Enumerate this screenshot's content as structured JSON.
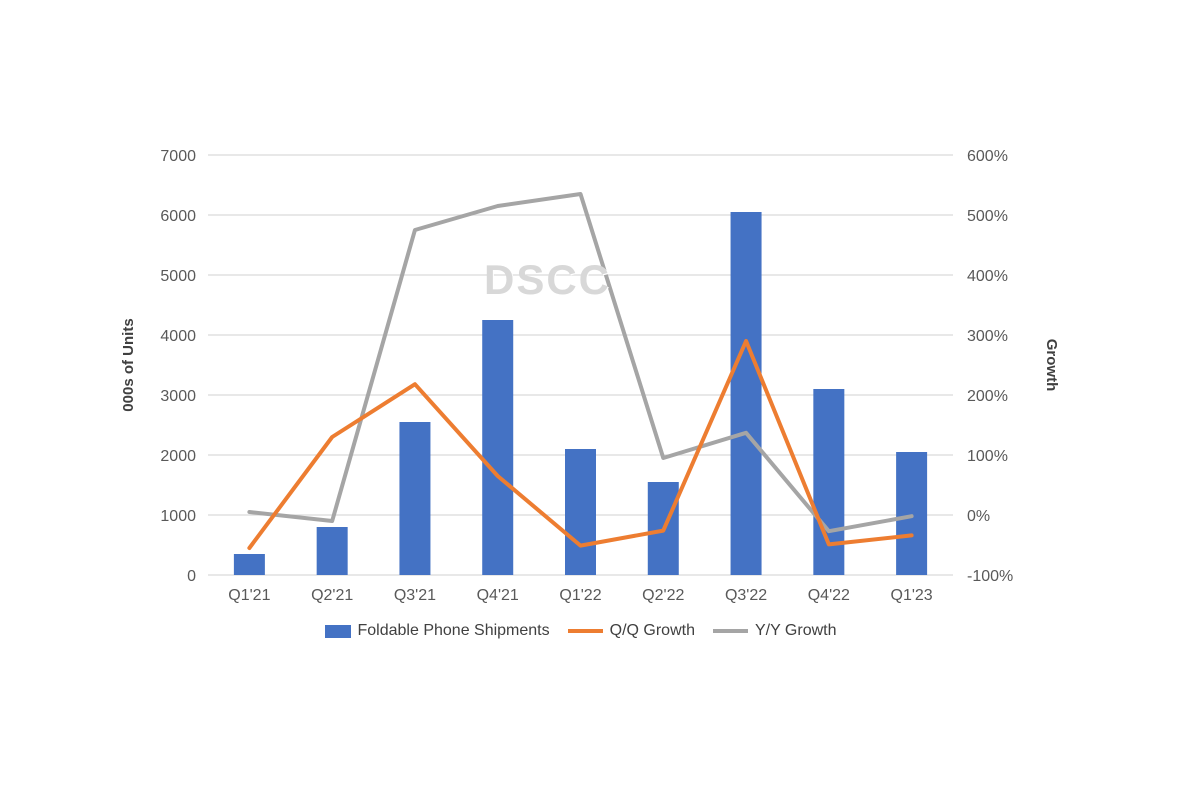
{
  "chart_data": {
    "type": "combo",
    "categories": [
      "Q1'21",
      "Q2'21",
      "Q3'21",
      "Q4'21",
      "Q1'22",
      "Q2'22",
      "Q3'22",
      "Q4'22",
      "Q1'23"
    ],
    "series": [
      {
        "name": "Foldable Phone Shipments",
        "type": "bar",
        "axis": "left",
        "color": "#4472C4",
        "values": [
          350,
          800,
          2550,
          4250,
          2100,
          1550,
          6050,
          3100,
          2050
        ]
      },
      {
        "name": "Q/Q Growth",
        "type": "line",
        "axis": "right",
        "color": "#ED7D31",
        "values": [
          -55,
          130,
          218,
          65,
          -51,
          -26,
          290,
          -49,
          -34
        ]
      },
      {
        "name": "Y/Y Growth",
        "type": "line",
        "axis": "right",
        "color": "#A5A5A5",
        "values": [
          5,
          -10,
          475,
          515,
          535,
          95,
          137,
          -27,
          -2
        ]
      }
    ],
    "left_axis": {
      "title": "000s of Units",
      "min": 0,
      "max": 7000,
      "step": 1000,
      "tick_labels": [
        "0",
        "1000",
        "2000",
        "3000",
        "4000",
        "5000",
        "6000",
        "7000"
      ]
    },
    "right_axis": {
      "title": "Growth",
      "min": -100,
      "max": 600,
      "step": 100,
      "tick_labels": [
        "-100%",
        "0%",
        "100%",
        "200%",
        "300%",
        "400%",
        "500%",
        "600%"
      ]
    },
    "grid": true,
    "legend_position": "bottom",
    "watermark": "DSCC"
  },
  "colors": {
    "background": "#FFFFFF",
    "gridline": "#D9D9D9",
    "axis_text": "#595959",
    "axis_title_text": "#404040",
    "legend_text": "#404040",
    "watermark": "#D8D8D8"
  }
}
